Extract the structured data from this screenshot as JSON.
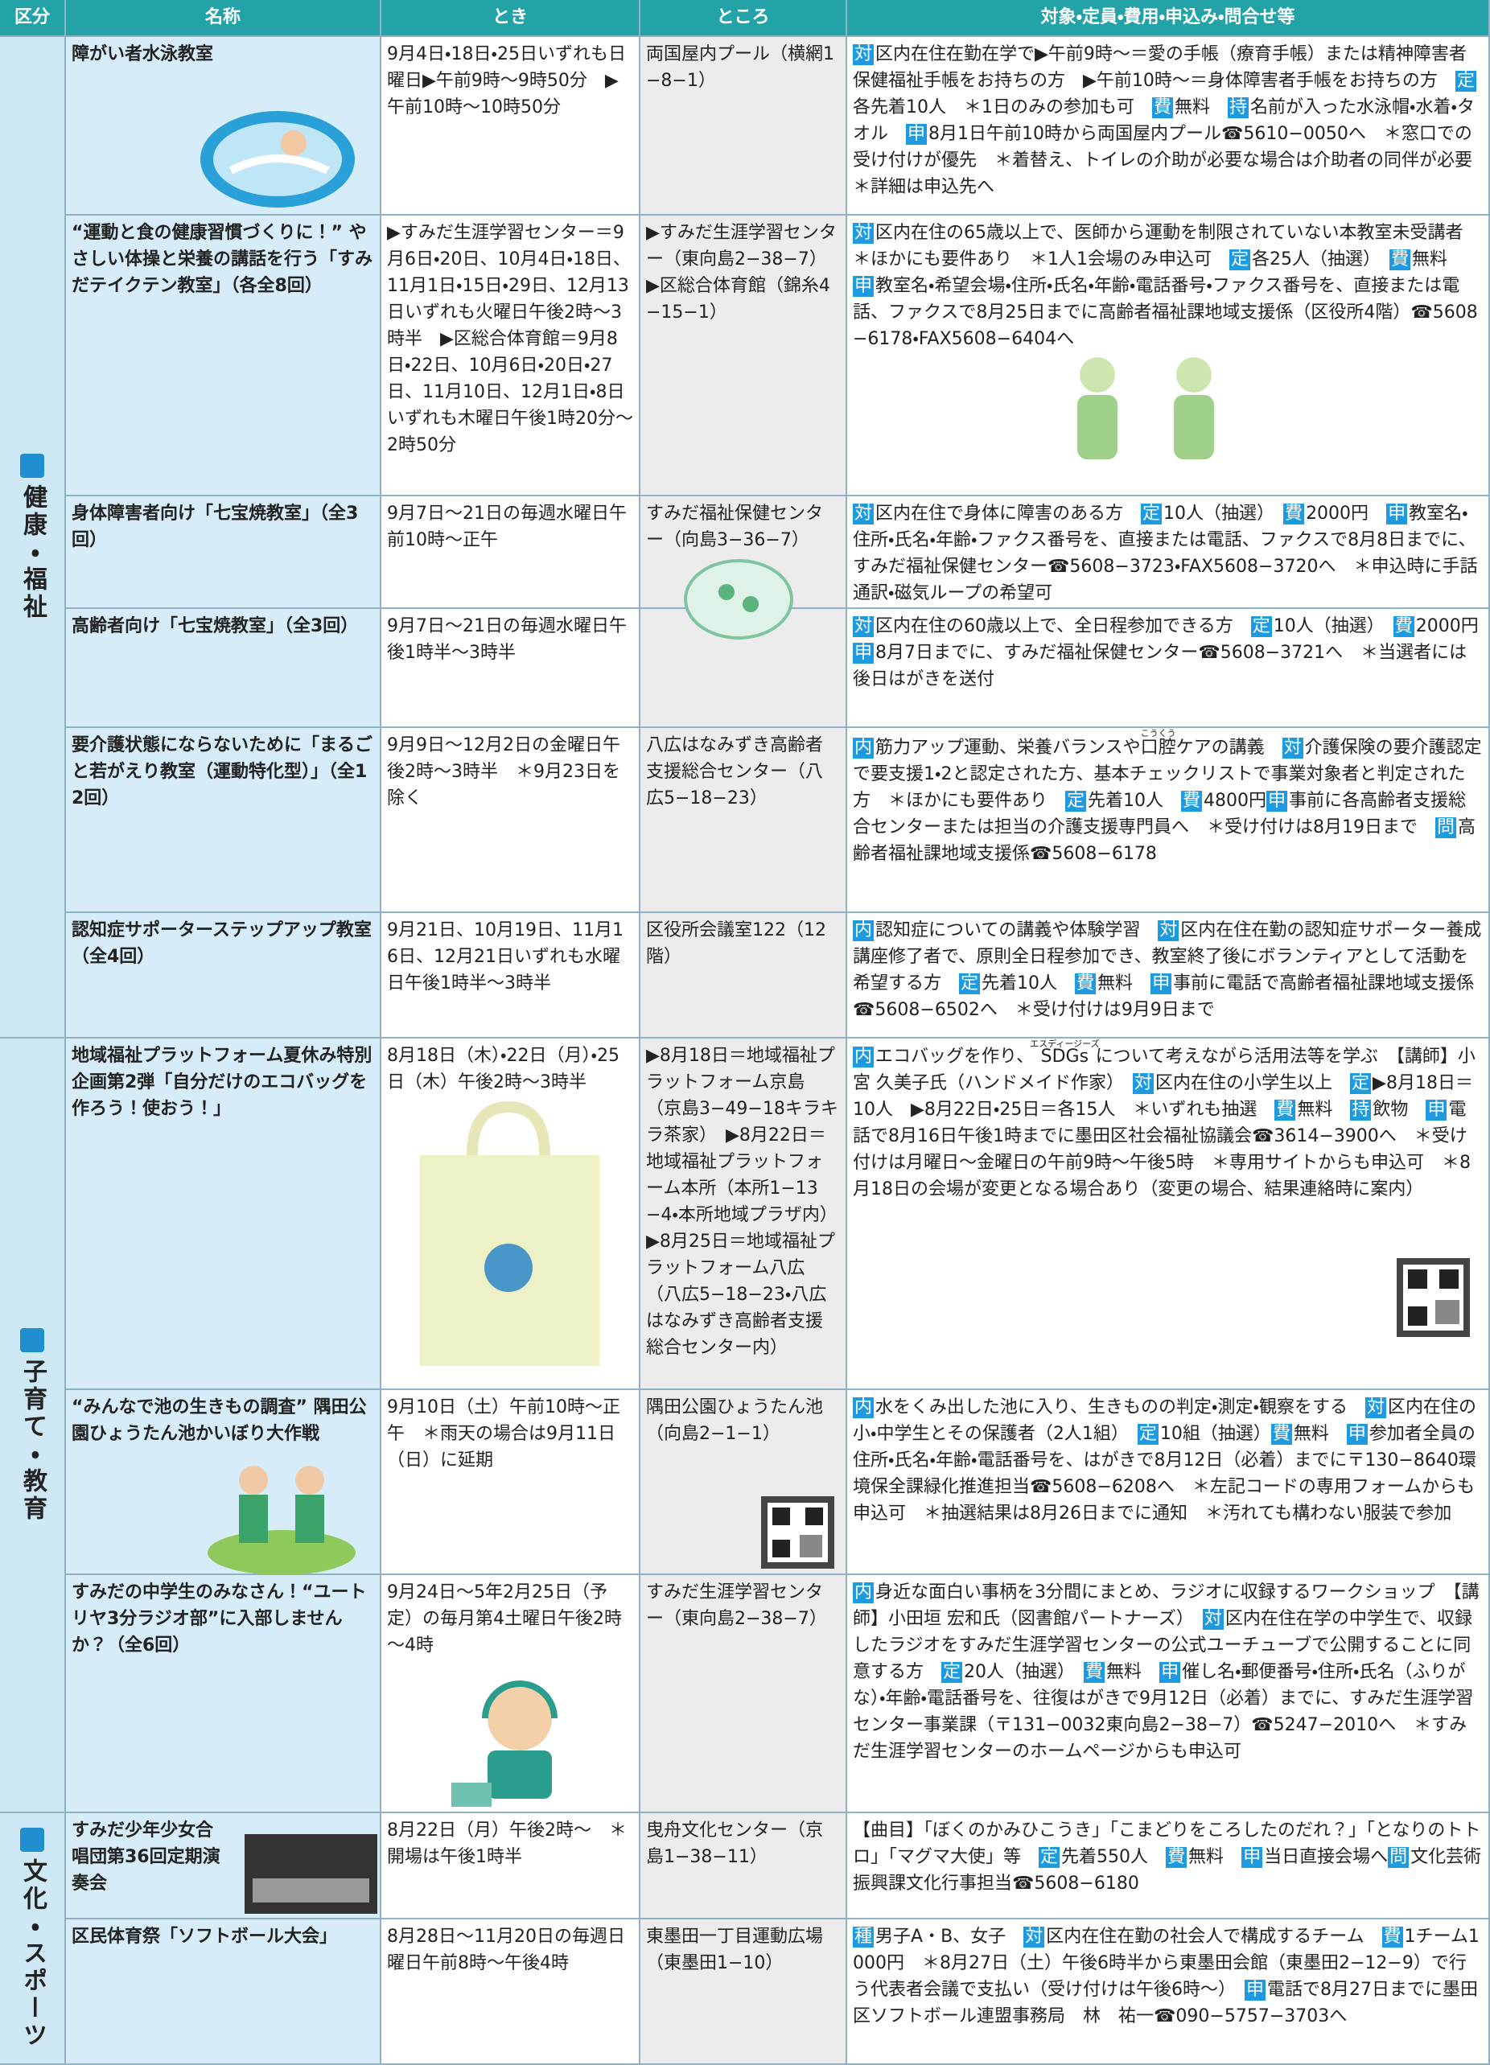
{
  "header": {
    "columns": [
      "区分",
      "名称",
      "とき",
      "ところ",
      "対象・定員・費用・申込み・問合せ等"
    ]
  },
  "sections": [
    {
      "label": "健康・福祉",
      "rows": [
        {
          "name": "障がい者水泳教室",
          "when": "9月4日・18日・25日いずれも日曜日▶午前9時～9時50分　▶午前10時～10時50分",
          "where": "両国屋内プール（横網1−8−1）",
          "details": [
            {
              "badge": "対"
            },
            {
              "text": "区内在住在勤在学で▶午前9時～＝愛の手帳（療育手帳）または精神障害者保健福祉手帳をお持ちの方　▶午前10時～＝身体障害者手帳をお持ちの方　"
            },
            {
              "badge": "定"
            },
            {
              "text": "各先着10人　＊1日のみの参加も可　"
            },
            {
              "badge": "費"
            },
            {
              "text": "無料　"
            },
            {
              "badge": "持"
            },
            {
              "text": "名前が入った水泳帽・水着・タオル　"
            },
            {
              "badge": "申"
            },
            {
              "text": "8月1日午前10時から両国屋内プール☎5610−0050へ　＊窓口での受け付けが優先　＊着替え、トイレの介助が必要な場合は介助者の同伴が必要　＊詳細は申込先へ"
            }
          ]
        },
        {
          "name": "“運動と食の健康習慣づくりに！” やさしい体操と栄養の講話を行う「すみだテイクテン教室」（各全8回）",
          "when": "▶すみだ生涯学習センター＝9月6日・20日、10月4日・18日、11月1日・15日・29日、12月13日いずれも火曜日午後2時～3時半　▶区総合体育館＝9月8日・22日、10月6日・20日・27日、11月10日、12月1日・8日いずれも木曜日午後1時20分～2時50分",
          "where": "▶すみだ生涯学習センター（東向島2−38−7）　▶区総合体育館（錦糸4−15−1）",
          "details": [
            {
              "badge": "対"
            },
            {
              "text": "区内在住の65歳以上で、医師から運動を制限されていない本教室未受講者　＊ほかにも要件あり　＊1人1会場のみ申込可　"
            },
            {
              "badge": "定"
            },
            {
              "text": "各25人（抽選）　"
            },
            {
              "badge": "費"
            },
            {
              "text": "無料　"
            },
            {
              "badge": "申"
            },
            {
              "text": "教室名・希望会場・住所・氏名・年齢・電話番号・ファクス番号を、直接または電話、ファクスで8月25日までに高齢者福祉課地域支援係（区役所4階）☎5608−6178・FAX5608−6404へ"
            }
          ]
        },
        {
          "name": "身体障害者向け「七宝焼教室」（全3回）",
          "when": "9月7日～21日の毎週水曜日午前10時～正午",
          "where": "すみだ福祉保健センター（向島3−36−7）",
          "details": [
            {
              "badge": "対"
            },
            {
              "text": "区内在住で身体に障害のある方　"
            },
            {
              "badge": "定"
            },
            {
              "text": "10人（抽選）　"
            },
            {
              "badge": "費"
            },
            {
              "text": "2000円　"
            },
            {
              "badge": "申"
            },
            {
              "text": "教室名・住所・氏名・年齢・ファクス番号を、直接または電話、ファクスで8月8日までに、すみだ福祉保健センター☎5608−3723・FAX5608−3720へ　＊申込時に手話通訳・磁気ループの希望可"
            }
          ]
        },
        {
          "name": "高齢者向け「七宝焼教室」（全3回）",
          "when": "9月7日～21日の毎週水曜日午後1時半～3時半",
          "where": null,
          "details": [
            {
              "badge": "対"
            },
            {
              "text": "区内在住の60歳以上で、全日程参加できる方　"
            },
            {
              "badge": "定"
            },
            {
              "text": "10人（抽選）　"
            },
            {
              "badge": "費"
            },
            {
              "text": "2000円　"
            },
            {
              "badge": "申"
            },
            {
              "text": "8月7日までに、すみだ福祉保健センター☎5608−3721へ　＊当選者には後日はがきを送付"
            }
          ]
        },
        {
          "name": "要介護状態にならないために「まるごと若がえり教室（運動特化型）」（全12回）",
          "when": "9月9日～12月2日の金曜日午後2時～3時半　＊9月23日を除く",
          "where": "八広はなみずき高齢者支援総合センター（八広5−18−23）",
          "details": [
            {
              "badge": "内"
            },
            {
              "text": "筋力アップ運動、栄養バランスや"
            },
            {
              "ruby": "口腔",
              "rt": "こうくう"
            },
            {
              "text": "ケアの講義　"
            },
            {
              "badge": "対"
            },
            {
              "text": "介護保険の要介護認定で要支援1・2と認定された方、基本チェックリストで事業対象者と判定された方　＊ほかにも要件あり　"
            },
            {
              "badge": "定"
            },
            {
              "text": "先着10人　"
            },
            {
              "badge": "費"
            },
            {
              "text": "4800円"
            },
            {
              "badge": "申"
            },
            {
              "text": "事前に各高齢者支援総合センターまたは担当の介護支援専門員へ　＊受け付けは8月19日まで　"
            },
            {
              "badge": "問"
            },
            {
              "text": "高齢者福祉課地域支援係☎5608−6178"
            }
          ]
        },
        {
          "name": "認知症サポーターステップアップ教室（全4回）",
          "when": "9月21日、10月19日、11月16日、12月21日いずれも水曜日午後1時半～3時半",
          "where": "区役所会議室122（12階）",
          "details": [
            {
              "badge": "内"
            },
            {
              "text": "認知症についての講義や体験学習　"
            },
            {
              "badge": "対"
            },
            {
              "text": "区内在住在勤の認知症サポーター養成講座修了者で、原則全日程参加でき、教室終了後にボランティアとして活動を希望する方　"
            },
            {
              "badge": "定"
            },
            {
              "text": "先着10人　"
            },
            {
              "badge": "費"
            },
            {
              "text": "無料　"
            },
            {
              "badge": "申"
            },
            {
              "text": "事前に電話で高齢者福祉課地域支援係☎5608−6502へ　＊受け付けは9月9日まで"
            }
          ]
        }
      ]
    },
    {
      "label": "子育て・教育",
      "rows": [
        {
          "name": "地域福祉プラットフォーム夏休み特別企画第2弾「自分だけのエコバッグを作ろう！使おう！」",
          "when": "8月18日（木）・22日（月）・25日（木）午後2時～3時半",
          "where": "▶8月18日＝地域福祉プラットフォーム京島（京島3−49−18キラキラ茶家）　▶8月22日＝地域福祉プラットフォーム本所（本所1−13−4・本所地域プラザ内）　▶8月25日＝地域福祉プラットフォーム八広（八広5−18−23・八広はなみずき高齢者支援総合センター内）",
          "details": [
            {
              "badge": "内"
            },
            {
              "text": "エコバッグを作り、"
            },
            {
              "ruby": "SDGs",
              "rt": "エスディージーズ"
            },
            {
              "text": "について考えながら活用法等を学ぶ　【講師】小宮 久美子氏（ハンドメイド作家）　"
            },
            {
              "badge": "対"
            },
            {
              "text": "区内在住の小学生以上　"
            },
            {
              "badge": "定"
            },
            {
              "text": "▶8月18日＝10人　▶8月22日・25日＝各15人　＊いずれも抽選　"
            },
            {
              "badge": "費"
            },
            {
              "text": "無料　"
            },
            {
              "badge": "持"
            },
            {
              "text": "飲物　"
            },
            {
              "badge": "申"
            },
            {
              "text": "電話で8月16日午後1時までに墨田区社会福祉協議会☎3614−3900へ　＊受け付けは月曜日～金曜日の午前9時～午後5時　＊専用サイトからも申込可　＊8月18日の会場が変更となる場合あり（変更の場合、結果連絡時に案内）"
            }
          ]
        },
        {
          "name": "“みんなで池の生きもの調査” 隅田公園ひょうたん池かいぼり大作戦",
          "when": "9月10日（土）午前10時～正午　＊雨天の場合は9月11日（日）に延期",
          "where": "隅田公園ひょうたん池（向島2−1−1）",
          "details": [
            {
              "badge": "内"
            },
            {
              "text": "水をくみ出した池に入り、生きものの判定・測定・観察をする　"
            },
            {
              "badge": "対"
            },
            {
              "text": "区内在住の小・中学生とその保護者（2人1組）　"
            },
            {
              "badge": "定"
            },
            {
              "text": "10組（抽選）"
            },
            {
              "badge": "費"
            },
            {
              "text": "無料　"
            },
            {
              "badge": "申"
            },
            {
              "text": "参加者全員の住所・氏名・年齢・電話番号を、はがきで8月12日（必着）までに〒130−8640環境保全課緑化推進担当☎5608−6208へ　＊左記コードの専用フォームからも申込可　＊抽選結果は8月26日までに通知　＊汚れても構わない服装で参加"
            }
          ]
        },
        {
          "name": "すみだの中学生のみなさん！“ユートリヤ3分ラジオ部”に入部しませんか？（全6回）",
          "when": "9月24日～5年2月25日（予定）の毎月第4土曜日午後2時～4時",
          "where": "すみだ生涯学習センター（東向島2−38−7）",
          "details": [
            {
              "badge": "内"
            },
            {
              "text": "身近な面白い事柄を3分間にまとめ、ラジオに収録するワークショップ　【講師】小田垣 宏和氏（図書館パートナーズ）　"
            },
            {
              "badge": "対"
            },
            {
              "text": "区内在住在学の中学生で、収録したラジオをすみだ生涯学習センターの公式ユーチューブで公開することに同意する方　"
            },
            {
              "badge": "定"
            },
            {
              "text": "20人（抽選）　"
            },
            {
              "badge": "費"
            },
            {
              "text": "無料　"
            },
            {
              "badge": "申"
            },
            {
              "text": "催し名・郵便番号・住所・氏名（ふりがな）・年齢・電話番号を、往復はがきで9月12日（必着）までに、すみだ生涯学習センター事業課（〒131−0032東向島2−38−7）☎5247−2010へ　＊すみだ生涯学習センターのホームページからも申込可"
            }
          ]
        }
      ]
    },
    {
      "label": "文化・スポーツ",
      "rows": [
        {
          "name": "すみだ少年少女合唱団第36回定期演奏会",
          "when": "8月22日（月）午後2時～　＊開場は午後1時半",
          "where": "曳舟文化センター（京島1−38−11）",
          "details": [
            {
              "text": "【曲目】「ぼくのかみひこうき」「こまどりをころしたのだれ？」「となりのトトロ」「マグマ大使」等　"
            },
            {
              "badge": "定"
            },
            {
              "text": "先着550人　"
            },
            {
              "badge": "費"
            },
            {
              "text": "無料　"
            },
            {
              "badge": "申"
            },
            {
              "text": "当日直接会場へ"
            },
            {
              "badge": "問"
            },
            {
              "text": "文化芸術振興課文化行事担当☎5608−6180"
            }
          ]
        },
        {
          "name": "区民体育祭「ソフトボール大会」",
          "when": "8月28日～11月20日の毎週日曜日午前8時～午後4時",
          "where": "東墨田一丁目運動広場（東墨田1−10）",
          "details": [
            {
              "badge": "種"
            },
            {
              "text": "男子A・B、女子　"
            },
            {
              "badge": "対"
            },
            {
              "text": "区内在住在勤の社会人で構成するチーム　"
            },
            {
              "badge": "費"
            },
            {
              "text": "1チーム1000円　＊8月27日（土）午後6時半から東墨田会館（東墨田2−12−9）で行う代表者会議で支払い（受け付けは午後6時～）　"
            },
            {
              "badge": "申"
            },
            {
              "text": "電話で8月27日までに墨田区ソフトボール連盟事務局　林　祐一☎090−5757−3703へ"
            }
          ]
        }
      ]
    }
  ]
}
